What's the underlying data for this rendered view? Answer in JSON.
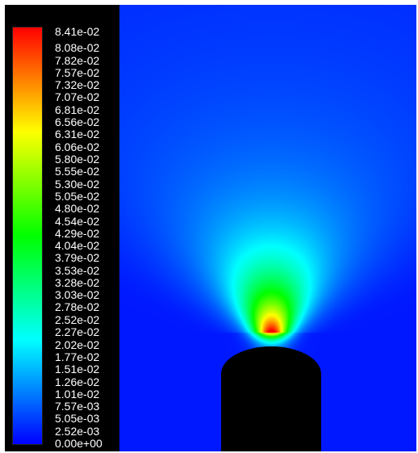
{
  "chart_data": {
    "type": "heatmap",
    "title": "",
    "colorbar": {
      "min": 0.0,
      "max": 0.0841,
      "colormap": "rainbow",
      "tick_labels": [
        "8.41e-02",
        "8.08e-02",
        "7.82e-02",
        "7.57e-02",
        "7.32e-02",
        "7.07e-02",
        "6.81e-02",
        "6.56e-02",
        "6.31e-02",
        "6.06e-02",
        "5.80e-02",
        "5.55e-02",
        "5.30e-02",
        "5.05e-02",
        "4.80e-02",
        "4.54e-02",
        "4.29e-02",
        "4.04e-02",
        "3.79e-02",
        "3.53e-02",
        "3.28e-02",
        "3.03e-02",
        "2.78e-02",
        "2.52e-02",
        "2.27e-02",
        "2.02e-02",
        "1.77e-02",
        "1.51e-02",
        "1.26e-02",
        "1.01e-02",
        "7.57e-03",
        "5.05e-03",
        "2.52e-03",
        "0.00e+00"
      ],
      "tick_values": [
        0.0841,
        0.0808,
        0.0782,
        0.0757,
        0.0732,
        0.0707,
        0.0681,
        0.0656,
        0.0631,
        0.0606,
        0.058,
        0.0555,
        0.053,
        0.0505,
        0.048,
        0.0454,
        0.0429,
        0.0404,
        0.0379,
        0.0353,
        0.0328,
        0.0303,
        0.0278,
        0.0252,
        0.0227,
        0.0202,
        0.0177,
        0.0151,
        0.0126,
        0.0101,
        0.00757,
        0.00505,
        0.00252,
        0.0
      ],
      "placement": "left"
    },
    "field": {
      "description_type": "plume",
      "background_value": 0.002,
      "peak_value": 0.0841,
      "obstacle": "nozzle",
      "obstacle_color": "#000000"
    }
  }
}
